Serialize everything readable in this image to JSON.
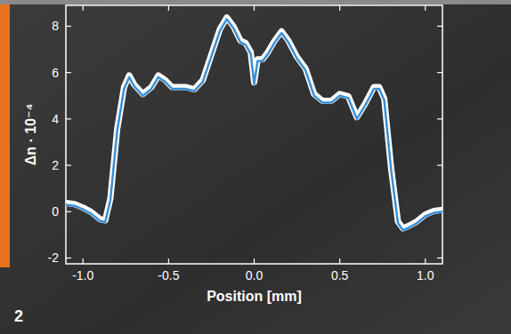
{
  "chart_data": {
    "type": "line",
    "x_label": "Position [mm]",
    "y_label": "Δn · 10⁻⁴",
    "annotation": "2",
    "x": [
      -1.1,
      -1.05,
      -1.0,
      -0.95,
      -0.9,
      -0.87,
      -0.84,
      -0.8,
      -0.76,
      -0.73,
      -0.7,
      -0.65,
      -0.6,
      -0.56,
      -0.52,
      -0.48,
      -0.4,
      -0.35,
      -0.3,
      -0.25,
      -0.2,
      -0.16,
      -0.12,
      -0.08,
      -0.05,
      -0.02,
      0.0,
      0.02,
      0.05,
      0.08,
      0.12,
      0.16,
      0.2,
      0.25,
      0.3,
      0.35,
      0.4,
      0.45,
      0.5,
      0.55,
      0.6,
      0.65,
      0.7,
      0.73,
      0.76,
      0.8,
      0.84,
      0.87,
      0.9,
      0.95,
      1.0,
      1.05,
      1.1
    ],
    "series": [
      {
        "color": "#3a8fd6",
        "values": [
          0.3,
          0.25,
          0.1,
          -0.1,
          -0.4,
          -0.45,
          0.5,
          3.5,
          5.3,
          5.8,
          5.4,
          5.0,
          5.3,
          5.8,
          5.6,
          5.3,
          5.3,
          5.2,
          5.6,
          6.7,
          7.8,
          8.3,
          7.9,
          7.3,
          7.2,
          6.8,
          5.5,
          6.5,
          6.5,
          6.8,
          7.3,
          7.7,
          7.3,
          6.6,
          6.1,
          5.0,
          4.7,
          4.7,
          5.0,
          4.9,
          4.0,
          4.6,
          5.3,
          5.3,
          4.8,
          1.8,
          -0.5,
          -0.8,
          -0.7,
          -0.5,
          -0.2,
          -0.05,
          0.0
        ]
      }
    ],
    "xlim": [
      -1.1,
      1.1
    ],
    "ylim": [
      -2.25,
      8.9
    ],
    "xticks": [
      {
        "value": -1.0,
        "label": "-1.0"
      },
      -0.5,
      {
        "value": 0,
        "label": "0.0"
      },
      0.5,
      {
        "value": 1.0,
        "label": "1.0"
      }
    ],
    "yticks": [
      -2,
      0,
      2,
      4,
      6,
      8
    ],
    "grid": false
  }
}
